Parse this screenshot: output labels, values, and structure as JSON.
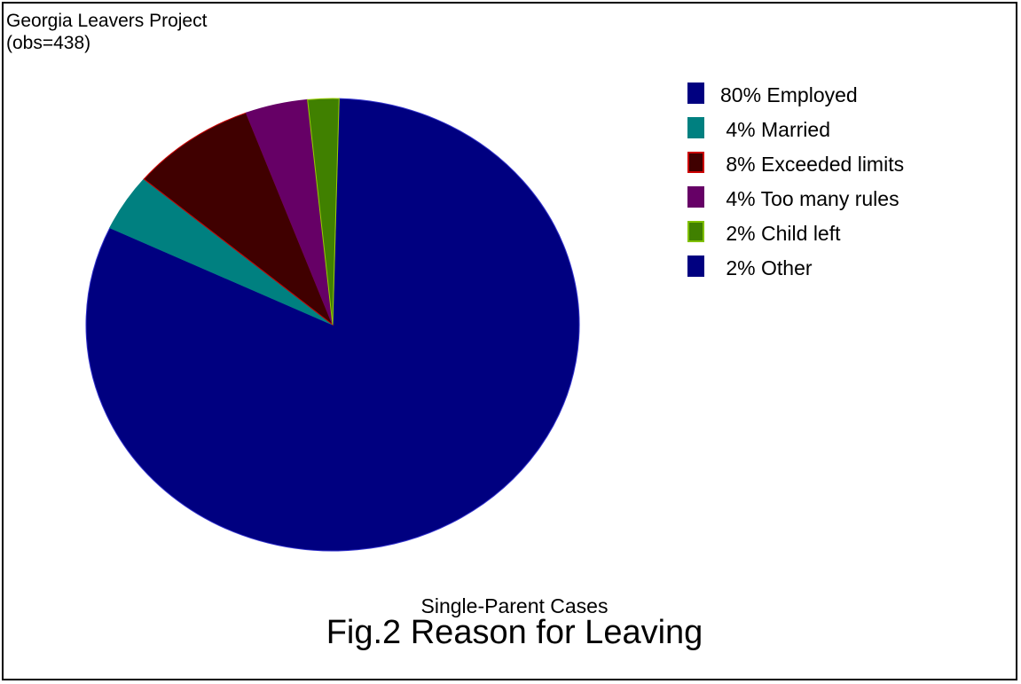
{
  "header": {
    "project": "Georgia Leavers Project",
    "obs": "(obs=438)"
  },
  "caption": {
    "subtitle": "Single-Parent Cases",
    "title": "Fig.2 Reason for Leaving"
  },
  "chart_data": {
    "type": "pie",
    "title": "Fig.2 Reason for Leaving",
    "subtitle": "Single-Parent Cases",
    "legend_position": "top-right",
    "start_angle_deg": 88.5,
    "direction": "clockwise",
    "draw_order": [
      "Employed",
      "Married",
      "Exceeded limits",
      "Too many rules",
      "Child left"
    ],
    "slices": [
      {
        "name": "Employed",
        "value": 80,
        "label": "80% Employed",
        "color": "#000080",
        "stroke": "#3333cc",
        "legend_border": "#000080"
      },
      {
        "name": "Married",
        "value": 4,
        "label": " 4% Married",
        "color": "#008080",
        "stroke": "#008080",
        "legend_border": "#008080"
      },
      {
        "name": "Exceeded limits",
        "value": 8,
        "label": " 8% Exceeded limits",
        "color": "#400000",
        "stroke": "#cc0000",
        "legend_border": "#cc0000"
      },
      {
        "name": "Too many rules",
        "value": 4,
        "label": " 4% Too many rules",
        "color": "#660066",
        "stroke": "#660066",
        "legend_border": "#660066"
      },
      {
        "name": "Child left",
        "value": 2,
        "label": " 2% Child left",
        "color": "#408000",
        "stroke": "#99cc00",
        "legend_border": "#80c000"
      },
      {
        "name": "Other",
        "value": 2,
        "label": " 2% Other",
        "color": "#000080",
        "stroke": "#000080",
        "legend_border": "#000080"
      }
    ]
  }
}
